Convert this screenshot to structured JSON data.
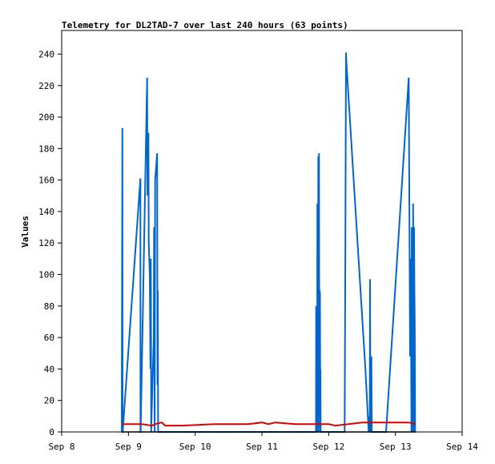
{
  "chart_data": {
    "type": "line",
    "title": "Telemetry for DL2TAD-7 over last 240 hours (63 points)",
    "ylabel": "Values",
    "xlabel": "",
    "x_ticks": [
      "Sep 8",
      "Sep 9",
      "Sep 10",
      "Sep 11",
      "Sep 12",
      "Sep 13",
      "Sep 14"
    ],
    "y_ticks": [
      0,
      20,
      40,
      60,
      80,
      100,
      120,
      140,
      160,
      180,
      200,
      220,
      240
    ],
    "xlim": [
      8,
      14
    ],
    "ylim": [
      0,
      255
    ],
    "grid": false,
    "series": [
      {
        "color": "#0066cc",
        "x": [
          8.9,
          8.91,
          8.912,
          8.914,
          9.18,
          9.181,
          9.183,
          9.28,
          9.285,
          9.3,
          9.305,
          9.32,
          9.33,
          9.335,
          9.34,
          9.34,
          9.38,
          9.385,
          9.39,
          9.393,
          9.4,
          9.43,
          9.435,
          9.44,
          9.445,
          9.455,
          11.81,
          11.812,
          11.815,
          11.818,
          11.825,
          11.828,
          11.83,
          11.835,
          11.84,
          11.845,
          11.85,
          11.855,
          11.86,
          11.865,
          11.87,
          11.875,
          11.877,
          11.88,
          11.9,
          12.24,
          12.25,
          12.26,
          12.265,
          12.55,
          12.6,
          12.61,
          12.615,
          12.62,
          12.625,
          12.635,
          12.64,
          12.645,
          12.65,
          12.86,
          13.2,
          13.22,
          13.23,
          13.24,
          13.245,
          13.255,
          13.26,
          13.265,
          13.27,
          13.28,
          13.285,
          13.29,
          13.295,
          13.3
        ],
        "values": [
          0,
          193,
          0,
          0,
          161,
          0,
          0,
          225,
          150,
          190,
          120,
          100,
          40,
          110,
          30,
          0,
          60,
          130,
          55,
          0,
          160,
          177,
          30,
          90,
          0,
          0,
          0,
          80,
          0,
          40,
          30,
          0,
          145,
          20,
          0,
          175,
          0,
          177,
          30,
          90,
          88,
          0,
          40,
          0,
          0,
          0,
          120,
          241,
          235,
          40,
          0,
          10,
          0,
          97,
          20,
          0,
          48,
          0,
          0,
          0,
          225,
          48,
          110,
          0,
          130,
          100,
          0,
          145,
          0,
          130,
          90,
          70,
          0,
          0
        ]
      },
      {
        "color": "#dd0000",
        "x": [
          8.9,
          9.0,
          9.2,
          9.35,
          9.4,
          9.5,
          9.55,
          9.8,
          10.3,
          10.5,
          10.8,
          11.0,
          11.1,
          11.2,
          11.5,
          11.8,
          12.0,
          12.1,
          12.3,
          12.5,
          12.7,
          12.9,
          13.2,
          13.3
        ],
        "values": [
          5,
          5,
          5,
          4,
          5,
          6,
          4,
          4,
          5,
          5,
          5,
          6,
          5,
          6,
          5,
          5,
          5,
          4,
          5,
          6,
          6,
          6,
          6,
          5
        ]
      },
      {
        "color": "#000000",
        "x": [
          8.9,
          13.3
        ],
        "values": [
          0,
          0
        ]
      }
    ]
  }
}
